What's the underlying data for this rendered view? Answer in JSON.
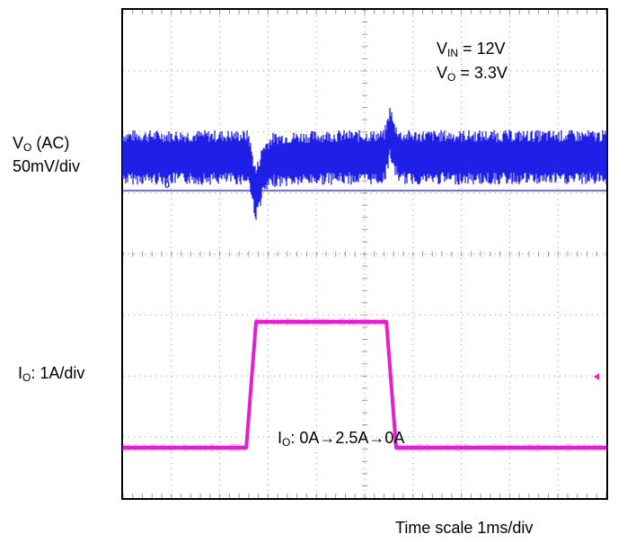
{
  "chart_data": {
    "type": "line",
    "title": "",
    "xlabel": "Time scale 1ms/div",
    "x_unit": "ms",
    "xlim": [
      0,
      10
    ],
    "grid": true,
    "grid_divisions": {
      "x": 10,
      "y": 8
    },
    "channel1": {
      "label_main": "V",
      "label_sub": "O",
      "label_rest": " (AC)",
      "scale_label": "50mV/div",
      "color": "#1f1fe8",
      "marker": "0",
      "points": [
        [
          0,
          0
        ],
        [
          2.6,
          0
        ],
        [
          2.68,
          -18
        ],
        [
          2.75,
          -30
        ],
        [
          2.9,
          -10
        ],
        [
          3.1,
          -2
        ],
        [
          4.2,
          0
        ],
        [
          5.4,
          0
        ],
        [
          5.48,
          12
        ],
        [
          5.53,
          22
        ],
        [
          5.6,
          8
        ],
        [
          5.75,
          0
        ],
        [
          10,
          0
        ]
      ],
      "noise_pp": 45
    },
    "channel2": {
      "label_main": "I",
      "label_sub": "O",
      "label_rest": ": 1A/div",
      "color": "#e61ed2",
      "points": [
        [
          0,
          0
        ],
        [
          2.55,
          0
        ],
        [
          2.75,
          2.5
        ],
        [
          5.45,
          2.5
        ],
        [
          5.65,
          0
        ],
        [
          10,
          0
        ]
      ],
      "ann_main": "I",
      "ann_sub": "O",
      "ann_rest": ": 0A→2.5A→0A"
    },
    "params": [
      {
        "main": "V",
        "sub": "IN",
        "rest": " = 12V"
      },
      {
        "main": "V",
        "sub": "O",
        "rest": " =  3.3V"
      }
    ]
  }
}
